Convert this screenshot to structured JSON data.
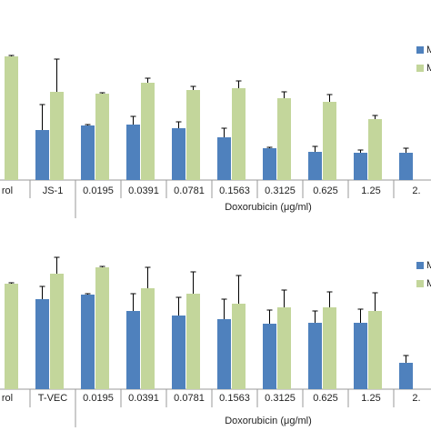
{
  "chart_data": [
    {
      "type": "bar",
      "x_label": "Doxorubicin (μg/ml)",
      "categories": [
        "rol",
        "JS-1",
        "0.0195",
        "0.0391",
        "0.0781",
        "0.1563",
        "0.3125",
        "0.625",
        "1.25",
        "2."
      ],
      "ylim": [
        0,
        150
      ],
      "series": [
        {
          "name": "M",
          "color": "#4f81bd",
          "values": [
            null,
            55,
            60,
            61,
            57,
            47,
            35,
            31,
            30,
            30
          ],
          "errors": [
            null,
            28,
            1,
            9,
            7,
            10,
            1,
            6,
            3,
            5
          ]
        },
        {
          "name": "M",
          "color": "#c3d69b",
          "values": [
            136,
            97,
            95,
            107,
            99,
            101,
            90,
            86,
            67,
            null
          ],
          "errors": [
            1,
            36,
            1,
            5,
            4,
            8,
            7,
            8,
            4,
            null
          ]
        }
      ]
    },
    {
      "type": "bar",
      "x_label": "Doxorubicin (μg/ml)",
      "categories": [
        "rol",
        "T-VEC",
        "0.0195",
        "0.0391",
        "0.0781",
        "0.1563",
        "0.3125",
        "0.625",
        "1.25",
        "2."
      ],
      "ylim": [
        0,
        150
      ],
      "series": [
        {
          "name": "M",
          "color": "#4f81bd",
          "values": [
            null,
            99,
            104,
            86,
            81,
            77,
            72,
            73,
            73,
            29
          ],
          "errors": [
            null,
            14,
            1,
            19,
            20,
            22,
            15,
            13,
            15,
            8
          ]
        },
        {
          "name": "M",
          "color": "#c3d69b",
          "values": [
            116,
            127,
            134,
            111,
            105,
            94,
            90,
            90,
            86,
            null
          ],
          "errors": [
            1,
            18,
            1,
            23,
            24,
            31,
            19,
            17,
            20,
            null
          ]
        }
      ]
    }
  ]
}
